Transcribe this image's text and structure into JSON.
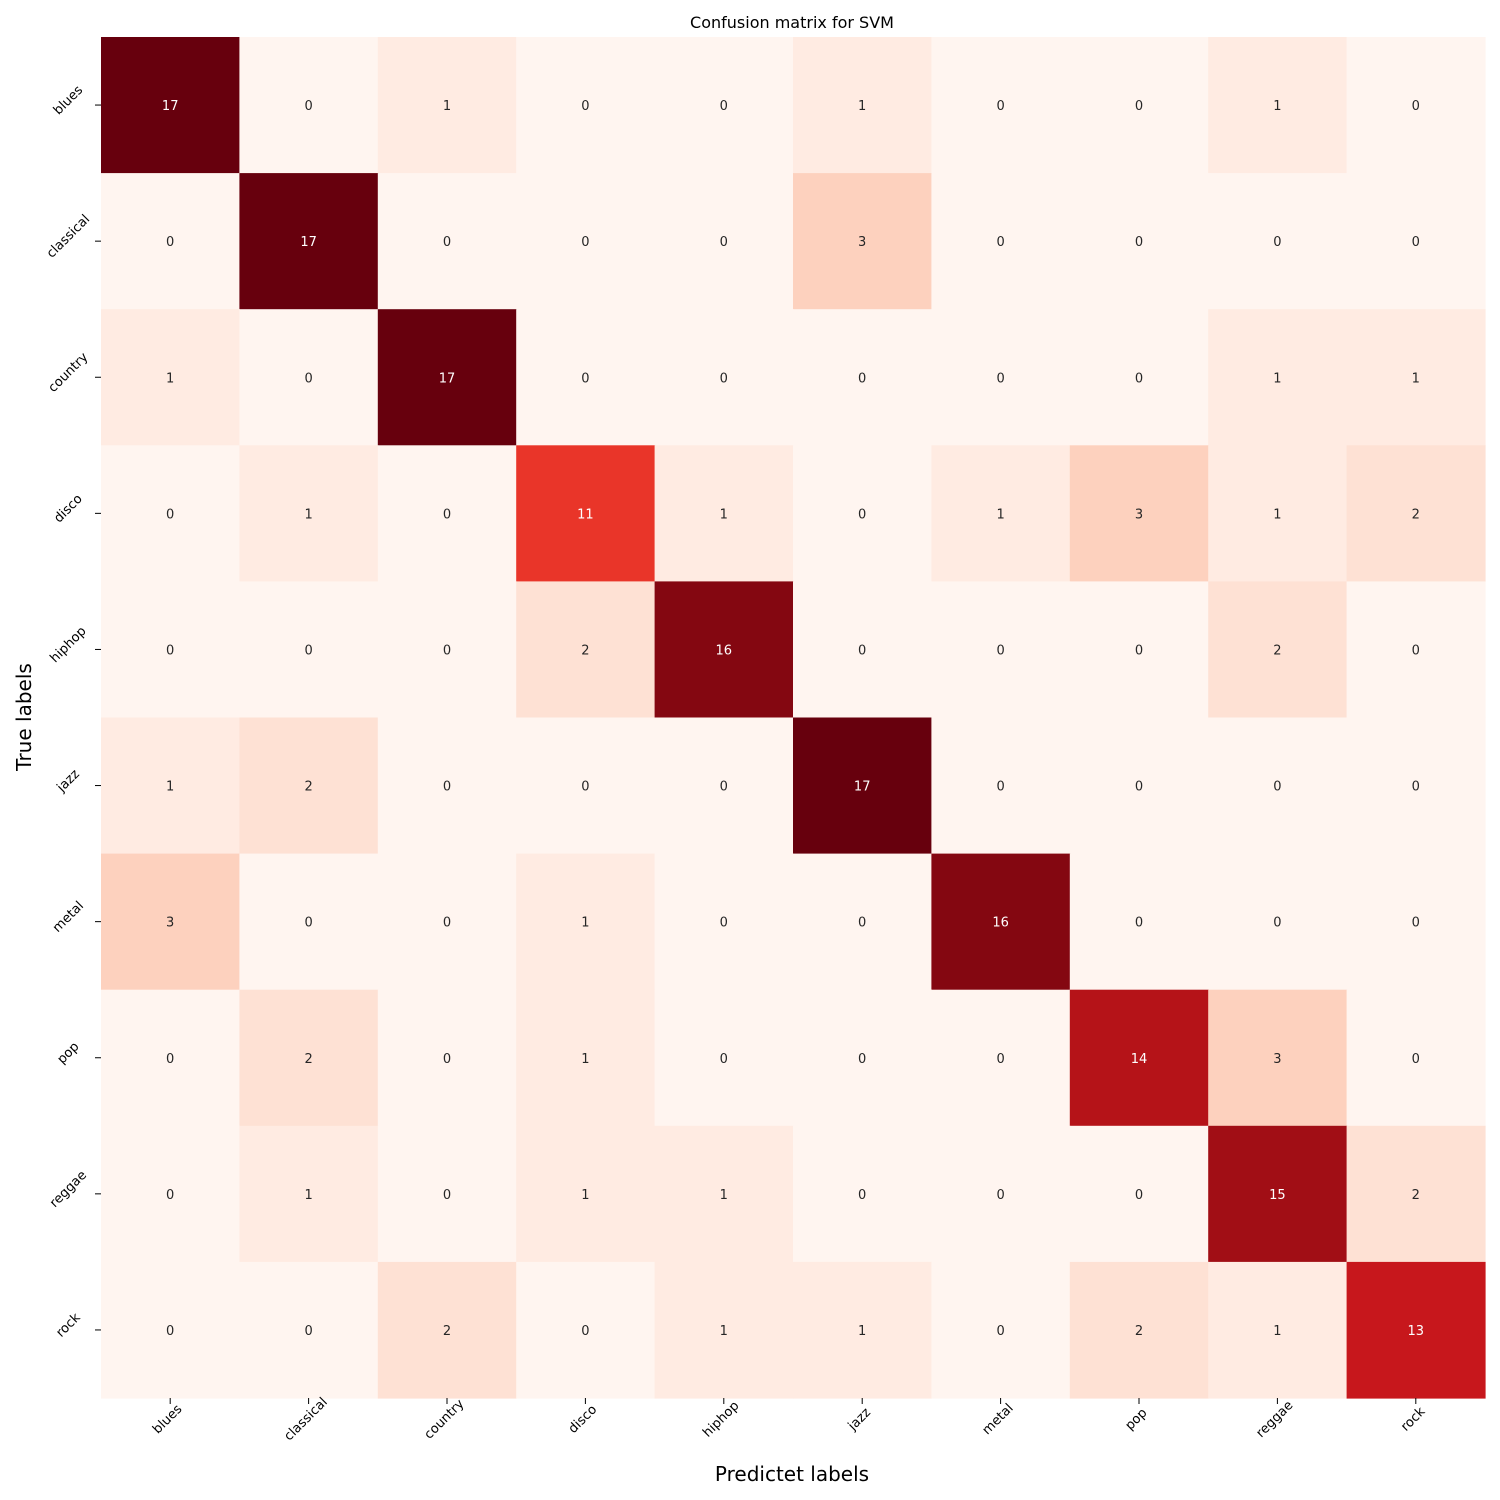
{
  "chart_data": {
    "type": "heatmap",
    "title": "Confusion matrix for SVM",
    "xlabel": "Predictet labels",
    "ylabel": "True labels",
    "x_categories": [
      "blues",
      "classical",
      "country",
      "disco",
      "hiphop",
      "jazz",
      "metal",
      "pop",
      "reggae",
      "rock"
    ],
    "y_categories": [
      "blues",
      "classical",
      "country",
      "disco",
      "hiphop",
      "jazz",
      "metal",
      "pop",
      "reggae",
      "rock"
    ],
    "values": [
      [
        17,
        0,
        1,
        0,
        0,
        1,
        0,
        0,
        1,
        0
      ],
      [
        0,
        17,
        0,
        0,
        0,
        3,
        0,
        0,
        0,
        0
      ],
      [
        1,
        0,
        17,
        0,
        0,
        0,
        0,
        0,
        1,
        1
      ],
      [
        0,
        1,
        0,
        11,
        1,
        0,
        1,
        3,
        1,
        2
      ],
      [
        0,
        0,
        0,
        2,
        16,
        0,
        0,
        0,
        2,
        0
      ],
      [
        1,
        2,
        0,
        0,
        0,
        17,
        0,
        0,
        0,
        0
      ],
      [
        3,
        0,
        0,
        1,
        0,
        0,
        16,
        0,
        0,
        0
      ],
      [
        0,
        2,
        0,
        1,
        0,
        0,
        0,
        14,
        3,
        0
      ],
      [
        0,
        1,
        0,
        1,
        1,
        0,
        0,
        0,
        15,
        2
      ],
      [
        0,
        0,
        2,
        0,
        1,
        1,
        0,
        2,
        1,
        13
      ]
    ],
    "colormap": "Reds",
    "vmin": 0,
    "vmax": 17,
    "colorbar": false,
    "annotations": true
  }
}
